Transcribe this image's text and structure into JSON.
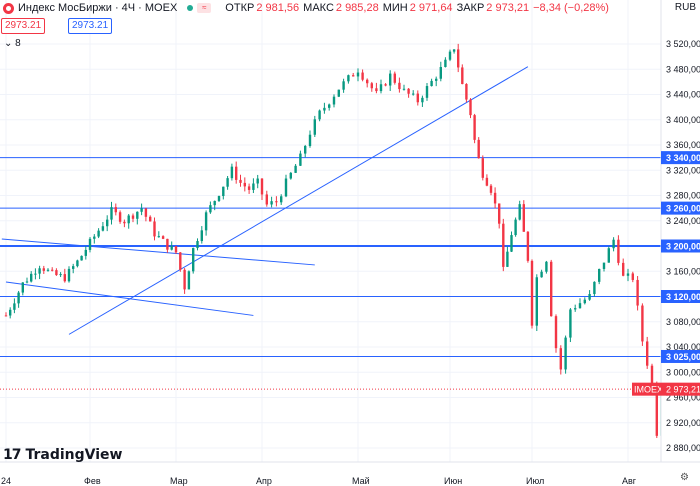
{
  "header": {
    "symbol": "Индекс МосБиржи · 4Ч · MOEX",
    "open_label": "ОТКР",
    "open": "2 981,56",
    "high_label": "МАКС",
    "high": "2 985,28",
    "low_label": "МИН",
    "low": "2 971,64",
    "close_label": "ЗАКР",
    "close": "2 973,21",
    "change": "−8,34 (−0,28%)",
    "sell_price": "2973.21",
    "buy_price": "2973.21",
    "indicators_count": "8",
    "currency": "RUB"
  },
  "branding": {
    "name": "TradingView"
  },
  "colors": {
    "up": "#089981",
    "down": "#f23645",
    "line": "#2962ff",
    "level_label_bg": "#2962ff",
    "price_label_bg": "#f23645"
  },
  "chart_data": {
    "type": "candlestick",
    "symbol": "IMOEX",
    "interval": "4H",
    "y_range": [
      2860,
      3540
    ],
    "y_ticks": [
      3520,
      3480,
      3440,
      3400,
      3360,
      3320,
      3280,
      3240,
      3200,
      3160,
      3120,
      3080,
      3040,
      3000,
      2960,
      2920,
      2880
    ],
    "y_tick_labels": [
      "3 520,00",
      "3 480,00",
      "3 440,00",
      "3 400,00",
      "3 360,00",
      "3 320,00",
      "3 280,00",
      "3 240,00",
      "3 200,00",
      "3 160,00",
      "3 120,00",
      "3 080,00",
      "3 040,00",
      "3 000,00",
      "2 960,00",
      "2 920,00",
      "2 880,00"
    ],
    "x_labels": [
      "24",
      "Фев",
      "Мар",
      "Апр",
      "Май",
      "Июн",
      "Июл",
      "Авг"
    ],
    "x_label_months": [
      0,
      1,
      2,
      3,
      4,
      5,
      6,
      7
    ],
    "horizontal_levels": [
      {
        "value": 3340,
        "label": "3 340,00"
      },
      {
        "value": 3260,
        "label": "3 260,00"
      },
      {
        "value": 3200,
        "label": "3 200,00",
        "bold": true
      },
      {
        "value": 3120,
        "label": "3 120,00"
      },
      {
        "value": 3025,
        "label": "3 025,00"
      }
    ],
    "last_price": {
      "ticker": "IMOEX",
      "value": 2973.21,
      "label": "2 973,21"
    },
    "trend_lines": [
      {
        "from": [
          0.0,
          3143
        ],
        "to": [
          2.9,
          3090
        ]
      },
      {
        "from": [
          -0.05,
          3211
        ],
        "to": [
          3.55,
          3170
        ]
      },
      {
        "from": [
          0.75,
          3060
        ],
        "to": [
          5.95,
          3484
        ]
      }
    ],
    "path": [
      [
        0.0,
        3090
      ],
      [
        0.2,
        3140
      ],
      [
        0.4,
        3170
      ],
      [
        0.55,
        3155
      ],
      [
        0.7,
        3150
      ],
      [
        0.85,
        3175
      ],
      [
        1.0,
        3205
      ],
      [
        1.15,
        3235
      ],
      [
        1.25,
        3255
      ],
      [
        1.4,
        3240
      ],
      [
        1.6,
        3260
      ],
      [
        1.75,
        3220
      ],
      [
        1.9,
        3200
      ],
      [
        2.0,
        3190
      ],
      [
        2.1,
        3135
      ],
      [
        2.2,
        3195
      ],
      [
        2.35,
        3250
      ],
      [
        2.5,
        3285
      ],
      [
        2.65,
        3320
      ],
      [
        2.75,
        3300
      ],
      [
        2.85,
        3290
      ],
      [
        2.95,
        3300
      ],
      [
        3.05,
        3265
      ],
      [
        3.15,
        3270
      ],
      [
        3.25,
        3300
      ],
      [
        3.4,
        3340
      ],
      [
        3.5,
        3380
      ],
      [
        3.6,
        3410
      ],
      [
        3.8,
        3450
      ],
      [
        4.0,
        3480
      ],
      [
        4.1,
        3460
      ],
      [
        4.2,
        3440
      ],
      [
        4.35,
        3470
      ],
      [
        4.5,
        3445
      ],
      [
        4.65,
        3430
      ],
      [
        4.8,
        3460
      ],
      [
        4.95,
        3490
      ],
      [
        5.05,
        3515
      ],
      [
        5.15,
        3455
      ],
      [
        5.25,
        3410
      ],
      [
        5.32,
        3350
      ],
      [
        5.4,
        3315
      ],
      [
        5.5,
        3290
      ],
      [
        5.6,
        3240
      ],
      [
        5.65,
        3160
      ],
      [
        5.75,
        3220
      ],
      [
        5.85,
        3260
      ],
      [
        5.95,
        3180
      ],
      [
        6.0,
        3080
      ],
      [
        6.05,
        3150
      ],
      [
        6.15,
        3180
      ],
      [
        6.22,
        3060
      ],
      [
        6.3,
        3005
      ],
      [
        6.4,
        3100
      ],
      [
        6.5,
        3110
      ],
      [
        6.6,
        3120
      ],
      [
        6.7,
        3160
      ],
      [
        6.85,
        3210
      ],
      [
        6.95,
        3150
      ],
      [
        7.05,
        3150
      ],
      [
        7.15,
        3050
      ],
      [
        7.25,
        2980
      ],
      [
        7.3,
        2905
      ],
      [
        7.35,
        2980
      ],
      [
        7.42,
        2973
      ]
    ]
  }
}
